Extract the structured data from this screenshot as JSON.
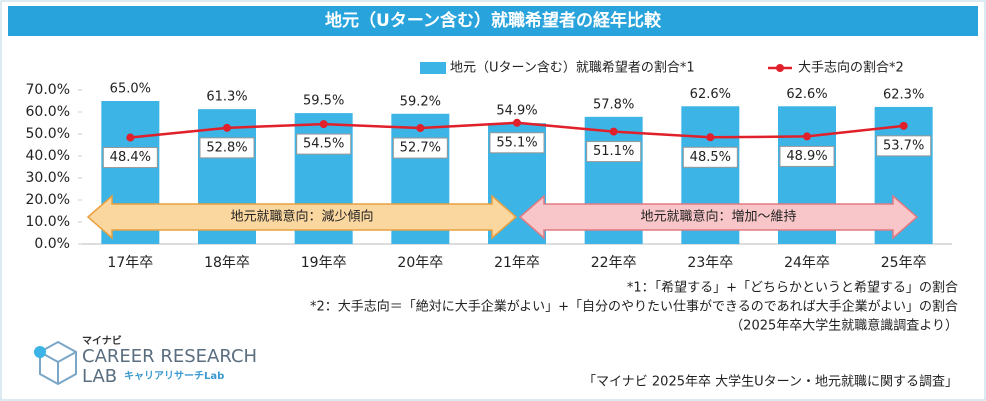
{
  "chart_data": {
    "type": "combo",
    "title": "地元（Uターン含む）就職希望者の経年比較",
    "categories": [
      "17年卒",
      "18年卒",
      "19年卒",
      "20年卒",
      "21年卒",
      "22年卒",
      "23年卒",
      "24年卒",
      "25年卒"
    ],
    "series": [
      {
        "name": "地元（Uターン含む）就職希望者の割合*1",
        "type": "bar",
        "color": "#3cb4e6",
        "values": [
          65.0,
          61.3,
          59.5,
          59.2,
          54.9,
          57.8,
          62.6,
          62.6,
          62.3
        ],
        "value_labels": [
          "65.0%",
          "61.3%",
          "59.5%",
          "59.2%",
          "54.9%",
          "57.8%",
          "62.6%",
          "62.6%",
          "62.3%"
        ]
      },
      {
        "name": "大手志向の割合*2",
        "type": "line",
        "color": "#e0202a",
        "values": [
          48.4,
          52.8,
          54.5,
          52.7,
          55.1,
          51.1,
          48.5,
          48.9,
          53.7
        ],
        "value_labels": [
          "48.4%",
          "52.8%",
          "54.5%",
          "52.7%",
          "55.1%",
          "51.1%",
          "48.5%",
          "48.9%",
          "53.7%"
        ]
      }
    ],
    "ylim": [
      0,
      70
    ],
    "yticks": [
      {
        "value": 0,
        "label": "0.0%"
      },
      {
        "value": 10,
        "label": "10.0%"
      },
      {
        "value": 20,
        "label": "20.0%"
      },
      {
        "value": 30,
        "label": "30.0%"
      },
      {
        "value": 40,
        "label": "40.0%"
      },
      {
        "value": 50,
        "label": "50.0%"
      },
      {
        "value": 60,
        "label": "60.0%"
      },
      {
        "value": 70,
        "label": "70.0%"
      }
    ],
    "legend": "top-right",
    "annotations": [
      {
        "text": "地元就職意向：減少傾向",
        "color": "#fbd7a0",
        "stroke": "#e8a040"
      },
      {
        "text": "地元就職意向：増加～維持",
        "color": "#f8c6c8",
        "stroke": "#e07a82"
      }
    ]
  },
  "notes": [
    "*1：「希望する」+「どちらかというと希望する」の割合",
    "*2：大手志向＝「絶対に大手企業がよい」+「自分のやりたい仕事ができるのであれば大手企業がよい」の割合",
    "（2025年卒大学生就職意識調査より）"
  ],
  "logo": {
    "brand": "マイナビ",
    "name": "CAREER RESEARCH",
    "sub": "LAB",
    "kana": "キャリアリサーチLab"
  },
  "source": "「マイナビ 2025年卒 大学生Uターン・地元就職に関する調査」"
}
